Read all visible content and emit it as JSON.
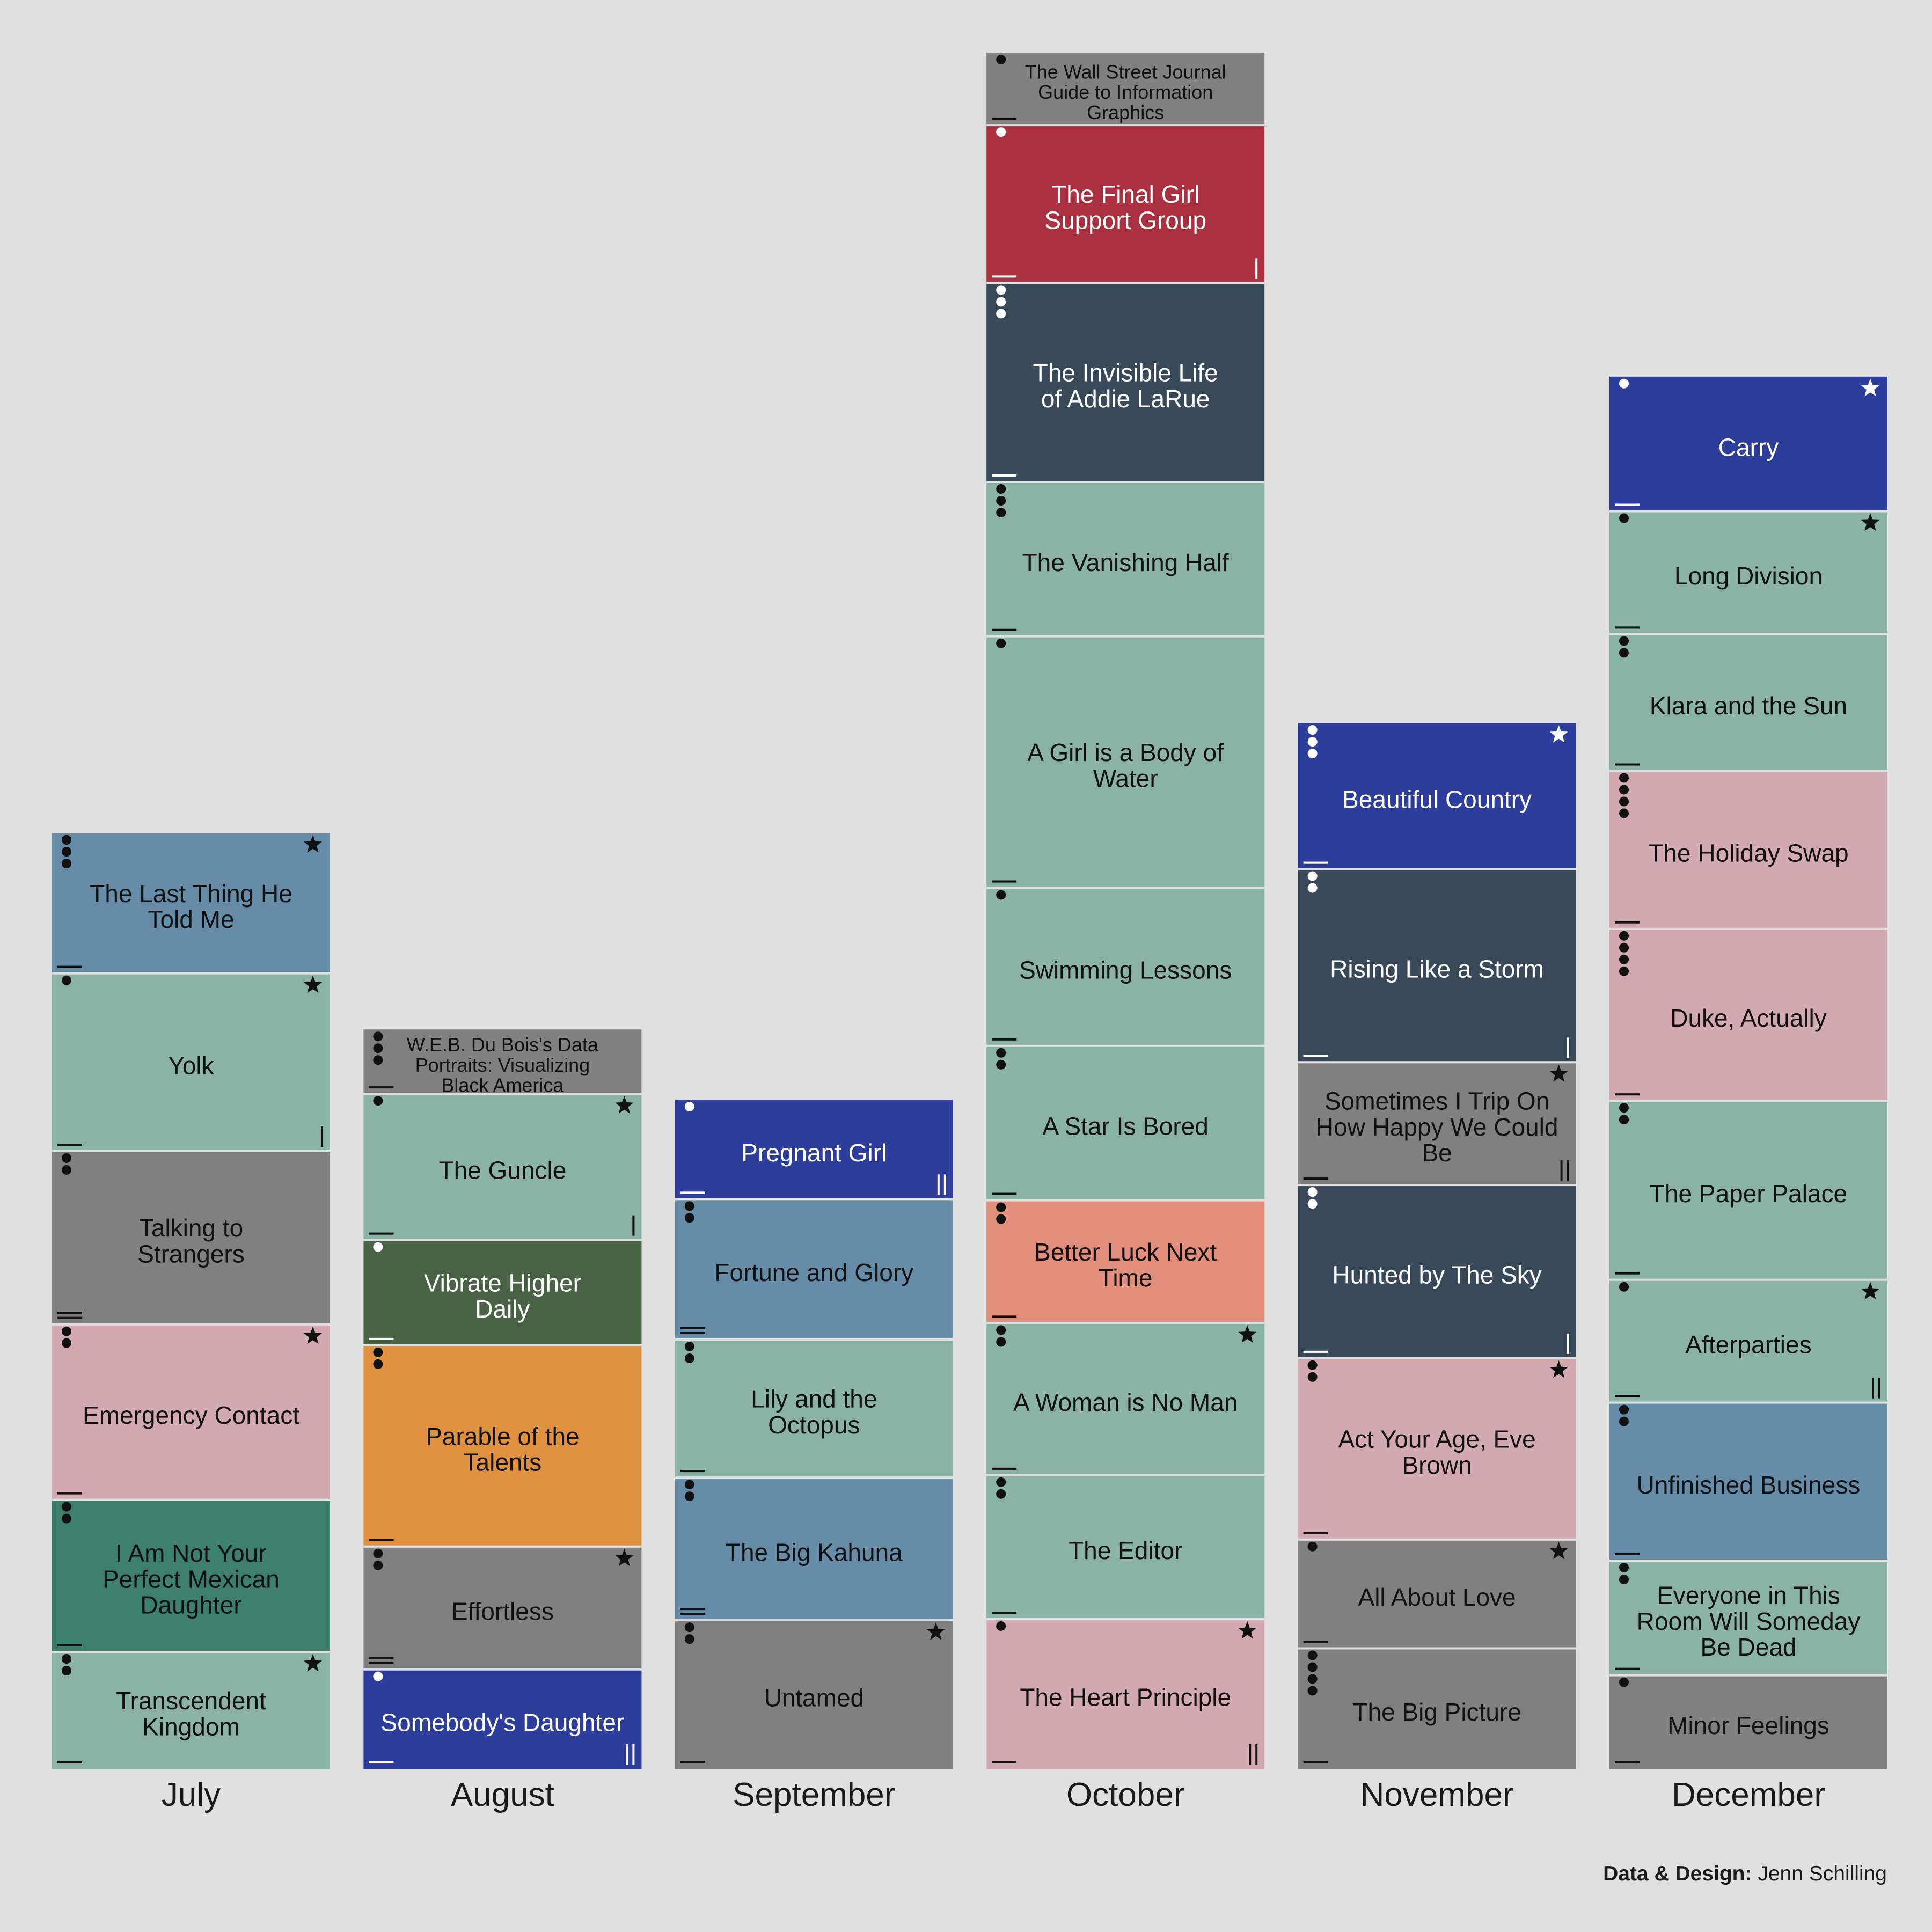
{
  "colors": {
    "background": "#e0e0e0",
    "divider": "#e0e0e0",
    "genre": {
      "sage": "#8ab3a6",
      "steelblue": "#678ca8",
      "grey": "#808080",
      "pink": "#d4aab2",
      "forest": "#3d7f6d",
      "moss": "#476343",
      "orange": "#df913f",
      "royal": "#2d3d9c",
      "crimson": "#a8303f",
      "slate": "#38495a",
      "salmon": "#e28e7c"
    }
  },
  "credit": {
    "label": "Data & Design:",
    "name": "Jenn Schilling"
  },
  "chart_data": {
    "type": "bar",
    "stacked": true,
    "title": "",
    "xlabel": "",
    "ylabel": "",
    "grid": false,
    "categories": [
      "July",
      "August",
      "September",
      "October",
      "November",
      "December"
    ],
    "series": [
      {
        "month": "July",
        "books": [
          {
            "title": "Transcendent Kingdom",
            "value": 1.0,
            "genre": "sage",
            "dots": 2,
            "star": true,
            "dashes": 1,
            "bars": 0
          },
          {
            "title": "I Am Not Your Perfect Mexican Daughter",
            "value": 1.3,
            "genre": "forest",
            "dots": 2,
            "star": false,
            "dashes": 1,
            "bars": 0
          },
          {
            "title": "Emergency Contact",
            "value": 1.5,
            "genre": "pink",
            "dots": 2,
            "star": true,
            "dashes": 1,
            "bars": 0
          },
          {
            "title": "Talking to Strangers",
            "value": 1.48,
            "genre": "grey",
            "dots": 2,
            "star": false,
            "dashes": 2,
            "bars": 0
          },
          {
            "title": "Yolk",
            "value": 1.52,
            "genre": "sage",
            "dots": 1,
            "star": true,
            "dashes": 1,
            "bars": 1
          },
          {
            "title": "The Last Thing He Told Me",
            "value": 1.2,
            "genre": "steelblue",
            "dots": 3,
            "star": true,
            "dashes": 1,
            "bars": 0
          }
        ]
      },
      {
        "month": "August",
        "books": [
          {
            "title": "Somebody's Daughter",
            "value": 0.85,
            "genre": "royal",
            "dots": 1,
            "star": false,
            "dashes": 1,
            "bars": 2
          },
          {
            "title": "Effortless",
            "value": 1.05,
            "genre": "grey",
            "dots": 2,
            "star": true,
            "dashes": 2,
            "bars": 0
          },
          {
            "title": "Parable of the Talents",
            "value": 1.72,
            "genre": "orange",
            "dots": 2,
            "star": false,
            "dashes": 1,
            "bars": 0
          },
          {
            "title": "Vibrate Higher Daily",
            "value": 0.9,
            "genre": "moss",
            "dots": 1,
            "star": false,
            "dashes": 1,
            "bars": 0
          },
          {
            "title": "The Guncle",
            "value": 1.25,
            "genre": "sage",
            "dots": 1,
            "star": true,
            "dashes": 1,
            "bars": 1
          },
          {
            "title": "W.E.B. Du Bois's Data Portraits: Visualizing Black America",
            "value": 0.55,
            "genre": "grey",
            "dots": 3,
            "star": false,
            "dashes": 1,
            "bars": 0
          }
        ]
      },
      {
        "month": "September",
        "books": [
          {
            "title": "Untamed",
            "value": 1.27,
            "genre": "grey",
            "dots": 2,
            "star": true,
            "dashes": 1,
            "bars": 0
          },
          {
            "title": "The Big Kahuna",
            "value": 1.22,
            "genre": "steelblue",
            "dots": 2,
            "star": false,
            "dashes": 2,
            "bars": 0
          },
          {
            "title": "Lily and the Octopus",
            "value": 1.18,
            "genre": "sage",
            "dots": 2,
            "star": false,
            "dashes": 1,
            "bars": 0
          },
          {
            "title": "Fortune and Glory",
            "value": 1.2,
            "genre": "steelblue",
            "dots": 2,
            "star": false,
            "dashes": 2,
            "bars": 0
          },
          {
            "title": "Pregnant Girl",
            "value": 0.85,
            "genre": "royal",
            "dots": 1,
            "star": false,
            "dashes": 1,
            "bars": 2
          }
        ]
      },
      {
        "month": "October",
        "books": [
          {
            "title": "The Heart Principle",
            "value": 1.28,
            "genre": "pink",
            "dots": 1,
            "star": true,
            "dashes": 1,
            "bars": 2
          },
          {
            "title": "The Editor",
            "value": 1.23,
            "genre": "sage",
            "dots": 2,
            "star": false,
            "dashes": 1,
            "bars": 0
          },
          {
            "title": "A Woman is No Man",
            "value": 1.3,
            "genre": "sage",
            "dots": 2,
            "star": true,
            "dashes": 1,
            "bars": 0
          },
          {
            "title": "Better Luck Next Time",
            "value": 1.05,
            "genre": "salmon",
            "dots": 2,
            "star": false,
            "dashes": 1,
            "bars": 0
          },
          {
            "title": "A Star Is Bored",
            "value": 1.32,
            "genre": "sage",
            "dots": 2,
            "star": false,
            "dashes": 1,
            "bars": 0
          },
          {
            "title": "Swimming Lessons",
            "value": 1.35,
            "genre": "sage",
            "dots": 1,
            "star": false,
            "dashes": 1,
            "bars": 0
          },
          {
            "title": "A Girl is a Body of Water",
            "value": 2.15,
            "genre": "sage",
            "dots": 1,
            "star": false,
            "dashes": 1,
            "bars": 0
          },
          {
            "title": "The Vanishing Half",
            "value": 1.32,
            "genre": "sage",
            "dots": 3,
            "star": false,
            "dashes": 1,
            "bars": 0
          },
          {
            "title": "The Invisible Life of Addie LaRue",
            "value": 1.7,
            "genre": "slate",
            "dots": 3,
            "star": false,
            "dashes": 1,
            "bars": 0
          },
          {
            "title": "The Final Girl Support Group",
            "value": 1.35,
            "genre": "crimson",
            "dots": 1,
            "star": false,
            "dashes": 1,
            "bars": 1
          },
          {
            "title": "The Wall Street Journal Guide to Information Graphics",
            "value": 0.62,
            "genre": "grey",
            "dots": 1,
            "star": false,
            "dashes": 1,
            "bars": 0
          }
        ]
      },
      {
        "month": "November",
        "books": [
          {
            "title": "The Big Picture",
            "value": 1.03,
            "genre": "grey",
            "dots": 4,
            "star": false,
            "dashes": 1,
            "bars": 0
          },
          {
            "title": "All About Love",
            "value": 0.93,
            "genre": "grey",
            "dots": 1,
            "star": true,
            "dashes": 1,
            "bars": 0
          },
          {
            "title": "Act Your Age, Eve Brown",
            "value": 1.55,
            "genre": "pink",
            "dots": 2,
            "star": true,
            "dashes": 1,
            "bars": 0
          },
          {
            "title": "Hunted by The Sky",
            "value": 1.48,
            "genre": "slate",
            "dots": 2,
            "star": false,
            "dashes": 1,
            "bars": 1
          },
          {
            "title": "Sometimes I Trip On How Happy We Could Be",
            "value": 1.05,
            "genre": "grey",
            "dots": 0,
            "star": true,
            "dashes": 1,
            "bars": 2
          },
          {
            "title": "Rising Like a Storm",
            "value": 1.65,
            "genre": "slate",
            "dots": 2,
            "star": false,
            "dashes": 1,
            "bars": 1
          },
          {
            "title": "Beautiful Country",
            "value": 1.25,
            "genre": "royal",
            "dots": 3,
            "star": true,
            "dashes": 1,
            "bars": 0
          }
        ]
      },
      {
        "month": "December",
        "books": [
          {
            "title": "Minor Feelings",
            "value": 0.8,
            "genre": "grey",
            "dots": 1,
            "star": false,
            "dashes": 1,
            "bars": 0
          },
          {
            "title": "Everyone in This Room Will Someday Be Dead",
            "value": 0.98,
            "genre": "sage",
            "dots": 2,
            "star": false,
            "dashes": 1,
            "bars": 0
          },
          {
            "title": "Unfinished Business",
            "value": 1.35,
            "genre": "steelblue",
            "dots": 2,
            "star": false,
            "dashes": 1,
            "bars": 0
          },
          {
            "title": "Afterparties",
            "value": 1.05,
            "genre": "sage",
            "dots": 1,
            "star": true,
            "dashes": 1,
            "bars": 2
          },
          {
            "title": "The Paper Palace",
            "value": 1.53,
            "genre": "sage",
            "dots": 2,
            "star": false,
            "dashes": 1,
            "bars": 0
          },
          {
            "title": "Duke, Actually",
            "value": 1.47,
            "genre": "pink",
            "dots": 4,
            "star": false,
            "dashes": 1,
            "bars": 0
          },
          {
            "title": "The Holiday Swap",
            "value": 1.35,
            "genre": "pink",
            "dots": 4,
            "star": false,
            "dashes": 1,
            "bars": 0
          },
          {
            "title": "Klara and the Sun",
            "value": 1.17,
            "genre": "sage",
            "dots": 2,
            "star": false,
            "dashes": 1,
            "bars": 0
          },
          {
            "title": "Long Division",
            "value": 1.05,
            "genre": "sage",
            "dots": 1,
            "star": true,
            "dashes": 1,
            "bars": 0
          },
          {
            "title": "Carry",
            "value": 1.15,
            "genre": "royal",
            "dots": 1,
            "star": true,
            "dashes": 1,
            "bars": 0
          }
        ]
      }
    ]
  }
}
